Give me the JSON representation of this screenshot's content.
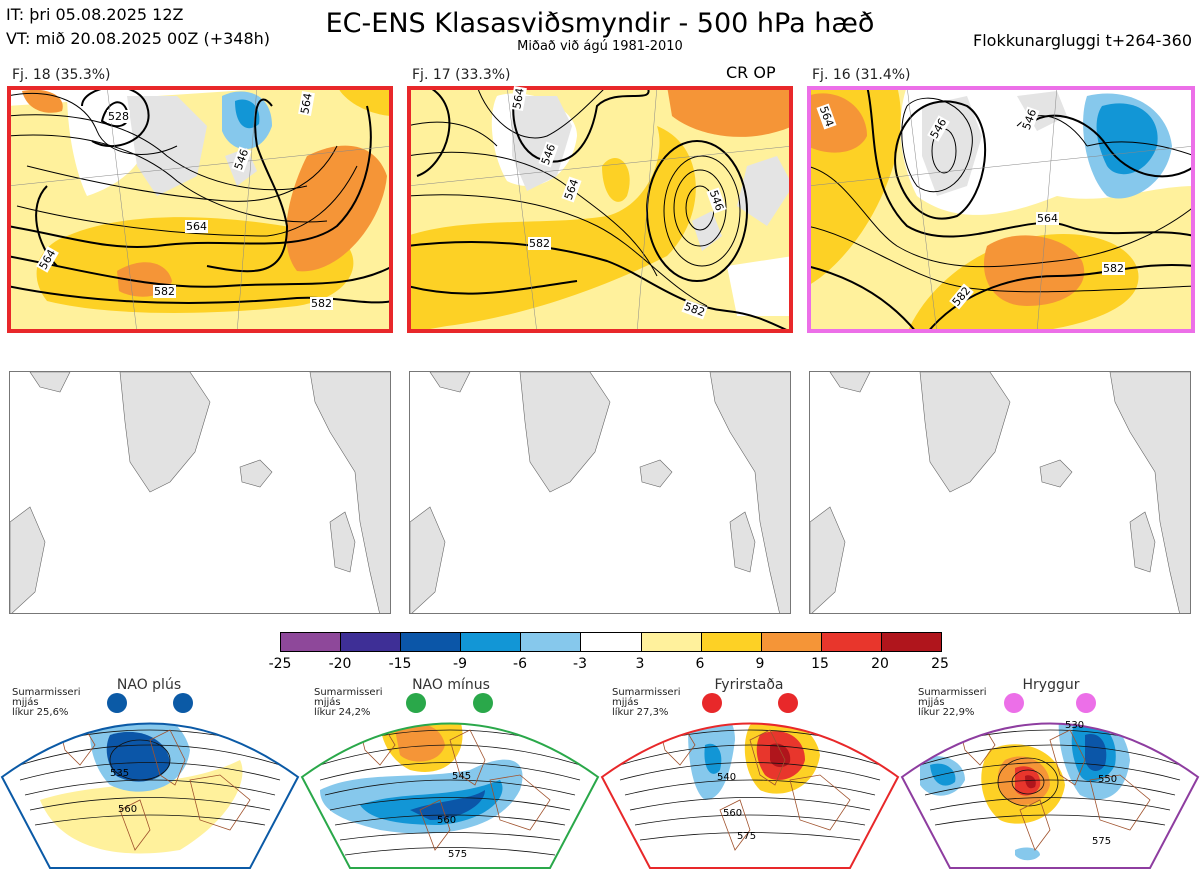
{
  "header": {
    "it_line": "IT: þri 05.08.2025 12Z",
    "vt_line": "VT: mið 20.08.2025 00Z  (+348h)",
    "title": "EC-ENS Klasasviðsmyndir - 500 hPa hæð",
    "subtitle": "Miðað við ágú 1981-2010",
    "window": "Flokkunargluggi t+264-360"
  },
  "clusters": [
    {
      "label": "Fj. 18 (35.3%)",
      "op_label": "",
      "border_color": "#e8282a",
      "contours": [
        "528",
        "546",
        "564",
        "564",
        "564",
        "582",
        "582"
      ]
    },
    {
      "label": "Fj. 17 (33.3%)",
      "op_label": "CR OP",
      "border_color": "#e8282a",
      "contours": [
        "564",
        "546",
        "564",
        "546",
        "582",
        "582"
      ]
    },
    {
      "label": "Fj. 16 (31.4%)",
      "op_label": "",
      "border_color": "#ec6fe8",
      "contours": [
        "546",
        "546",
        "564",
        "564",
        "582",
        "582"
      ]
    }
  ],
  "colorbar": {
    "ticks": [
      "-25",
      "-20",
      "-15",
      "-9",
      "-6",
      "-3",
      "3",
      "6",
      "9",
      "15",
      "20",
      "25"
    ],
    "colors": [
      "#8e489a",
      "#3e2f96",
      "#0b56a8",
      "#1296d6",
      "#86c8ec",
      "#ffffff",
      "#fff19c",
      "#fdd125",
      "#f59537",
      "#e8362c",
      "#b0151c"
    ]
  },
  "regimes": [
    {
      "name": "NAO plús",
      "season": "Sumarmisseri",
      "freq": "mjjás",
      "likelihood": "líkur 25,6%",
      "contours": [
        "535",
        "560"
      ],
      "frame_color": "#0b5aa6",
      "dot_color": "#0b5aa6"
    },
    {
      "name": "NAO mínus",
      "season": "Sumarmisseri",
      "freq": "mjjás",
      "likelihood": "líkur 24,2%",
      "contours": [
        "545",
        "560",
        "575"
      ],
      "frame_color": "#2aa84a",
      "dot_color": "#2aa84a"
    },
    {
      "name": "Fyrirstaða",
      "season": "Sumarmisseri",
      "freq": "mjjás",
      "likelihood": "líkur 27,3%",
      "contours": [
        "540",
        "560",
        "575"
      ],
      "frame_color": "#e8282a",
      "dot_color": "#e8282a"
    },
    {
      "name": "Hryggur",
      "season": "Sumarmisseri",
      "freq": "mjjás",
      "likelihood": "líkur 22,9%",
      "contours": [
        "530",
        "550",
        "575"
      ],
      "frame_color": "#8e3da0",
      "dot_color": "#ec6fe8"
    }
  ]
}
